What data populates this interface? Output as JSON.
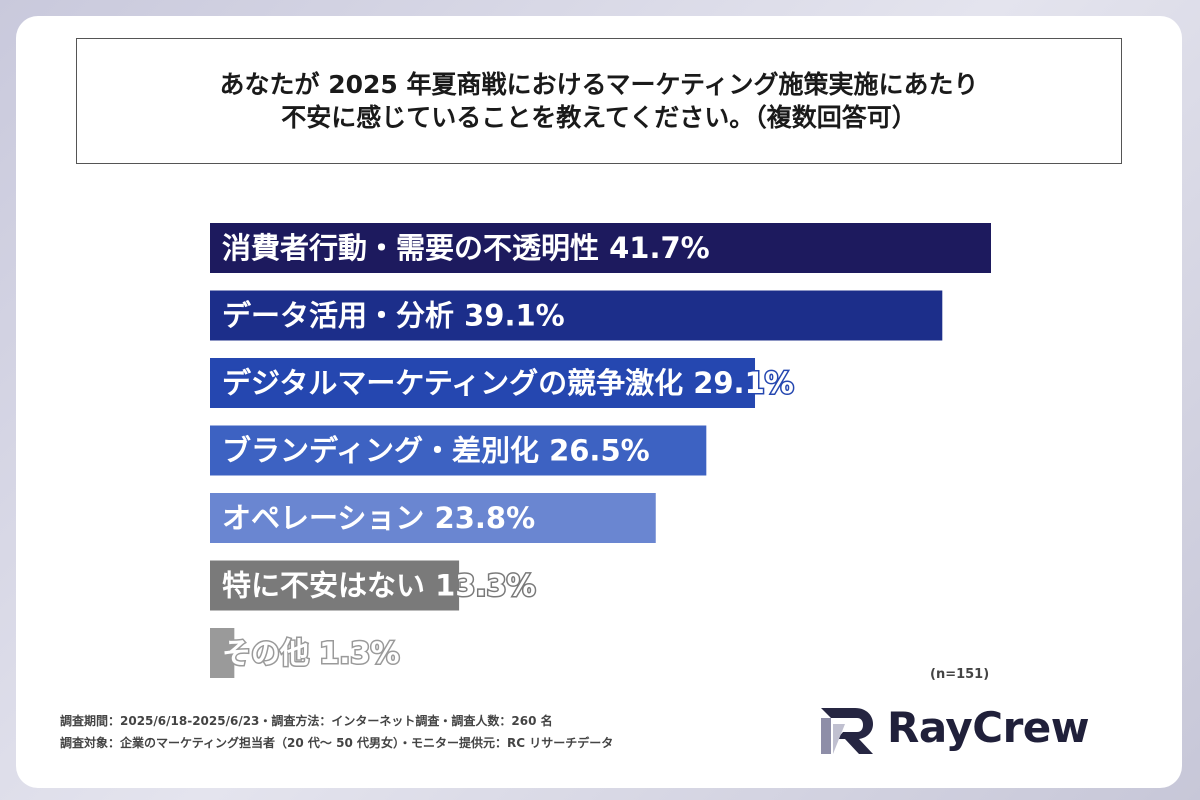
{
  "title": {
    "line1": "あなたが 2025 年夏商戦におけるマーケティング施策実施にあたり",
    "line2": "不安に感じていることを教えてください。（複数回答可）"
  },
  "chart_data": {
    "type": "bar",
    "orientation": "horizontal",
    "categories": [
      "消費者行動・需要の不透明性",
      "データ活用・分析",
      "デジタルマーケティングの競争激化",
      "ブランディング・差別化",
      "オペレーション",
      "特に不安はない",
      "その他"
    ],
    "values": [
      41.7,
      39.1,
      29.1,
      26.5,
      23.8,
      13.3,
      1.3
    ],
    "value_format": "%",
    "colors": [
      "#1d1a5e",
      "#1c2e8a",
      "#2547b0",
      "#3d62c2",
      "#6a86d1",
      "#7a7a7a",
      "#9a9a9a"
    ],
    "xlim": [
      0,
      41.7
    ],
    "n_label": "(n=151)"
  },
  "footer": {
    "line1": "調査期間：2025/6/18-2025/6/23・調査方法：インターネット調査・調査人数：260 名",
    "line2": "調査対象：企業のマーケティング担当者（20 代～ 50 代男女）・モニター提供元：RC リサーチデータ"
  },
  "logo": {
    "text": "RayCrew"
  }
}
